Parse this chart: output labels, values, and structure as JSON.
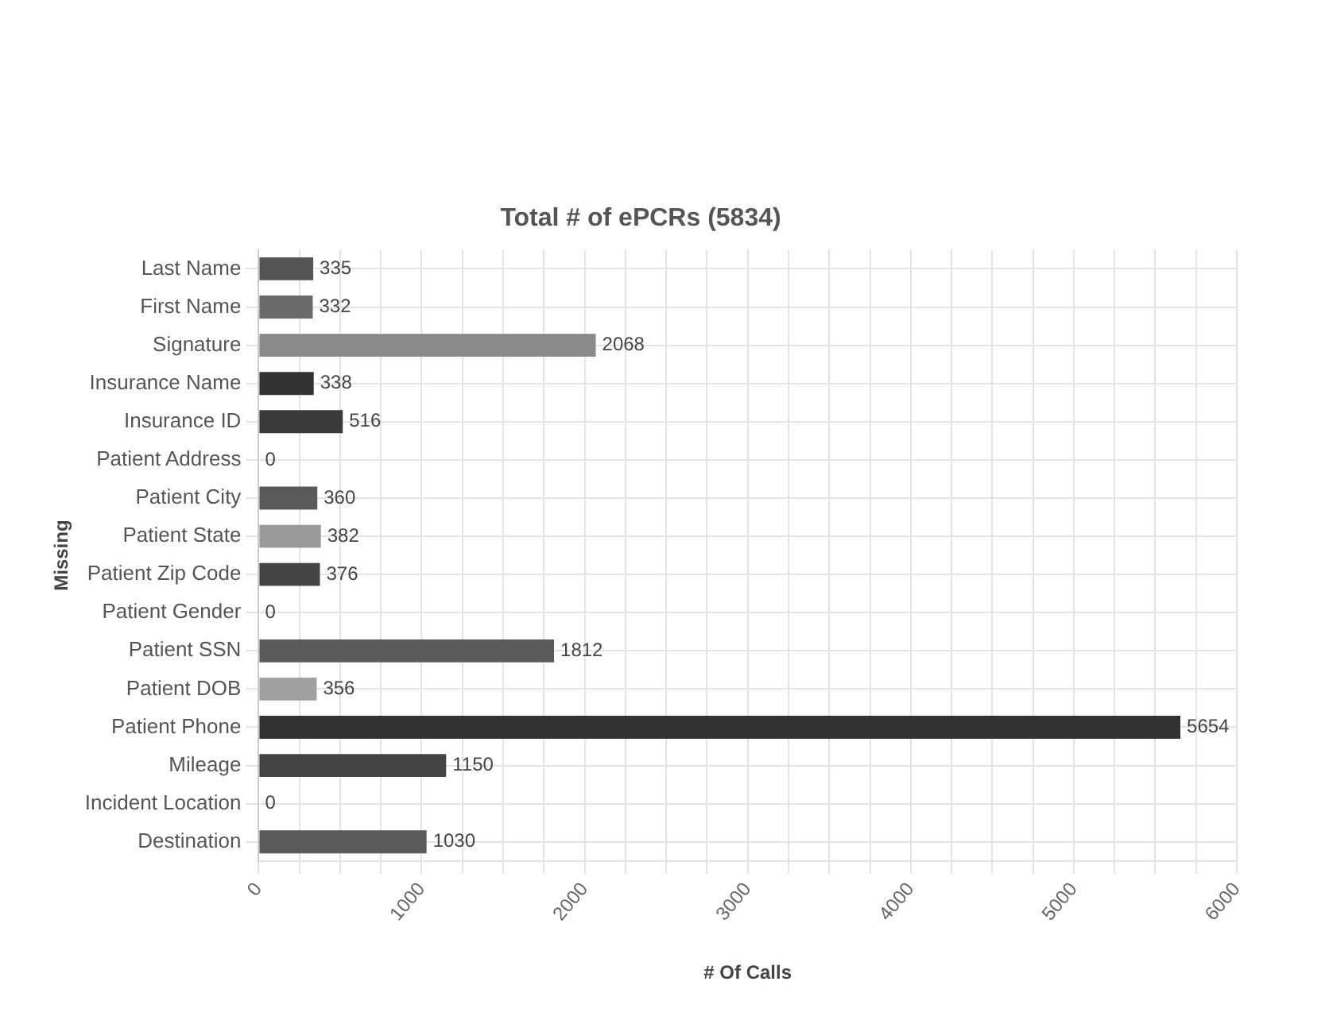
{
  "chart_data": {
    "type": "bar",
    "orientation": "horizontal",
    "title": "Total # of ePCRs (5834)",
    "xlabel": "# Of Calls",
    "ylabel": "Missing",
    "categories": [
      "Last Name",
      "First Name",
      "Signature",
      "Insurance Name",
      "Insurance ID",
      "Patient Address",
      "Patient City",
      "Patient State",
      "Patient Zip Code",
      "Patient Gender",
      "Patient SSN",
      "Patient DOB",
      "Patient Phone",
      "Mileage",
      "Incident Location",
      "Destination"
    ],
    "values": [
      335,
      332,
      2068,
      338,
      516,
      0,
      360,
      382,
      376,
      0,
      1812,
      356,
      5654,
      1150,
      0,
      1030
    ],
    "colors": [
      "#555555",
      "#6a6a6a",
      "#8a8a8a",
      "#333333",
      "#3a3a3a",
      "#555555",
      "#5a5a5a",
      "#9a9a9a",
      "#444444",
      "#555555",
      "#5a5a5a",
      "#a0a0a0",
      "#333333",
      "#444444",
      "#555555",
      "#5a5a5a"
    ],
    "data_labels": true,
    "xlim": [
      0,
      6000
    ],
    "xticks": [
      0,
      {
        "value": 250,
        "label": null
      },
      {
        "value": 500,
        "label": null
      },
      {
        "value": 750,
        "label": null
      },
      1000,
      {
        "value": 1250,
        "label": null
      },
      {
        "value": 1500,
        "label": null
      },
      {
        "value": 1750,
        "label": null
      },
      2000,
      {
        "value": 2250,
        "label": null
      },
      {
        "value": 2500,
        "label": null
      },
      {
        "value": 2750,
        "label": null
      },
      3000,
      {
        "value": 3250,
        "label": null
      },
      {
        "value": 3500,
        "label": null
      },
      {
        "value": 3750,
        "label": null
      },
      4000,
      {
        "value": 4250,
        "label": null
      },
      {
        "value": 4500,
        "label": null
      },
      {
        "value": 4750,
        "label": null
      },
      5000,
      {
        "value": 5250,
        "label": null
      },
      {
        "value": 5500,
        "label": null
      },
      {
        "value": 5750,
        "label": null
      },
      6000
    ],
    "grid": true,
    "legend": false
  }
}
